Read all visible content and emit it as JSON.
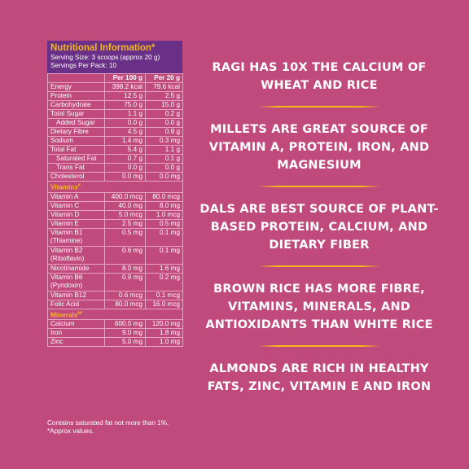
{
  "nutrition": {
    "title": "Nutritional Information*",
    "serving_size": "Serving Size: 3 scoops (approx 20 g)",
    "servings_per_pack": "Servings Per Pack: 10",
    "col1": "Per 100 g",
    "col2": "Per 20 g",
    "rows": [
      [
        "Energy",
        "398.2 kcal",
        "79.6 kcal"
      ],
      [
        "Protein",
        "12.5 g",
        "2.5 g"
      ],
      [
        "Carbohydrate",
        "75.0 g",
        "15.0 g"
      ],
      [
        "Total Sugar",
        "1.1 g",
        "0.2 g"
      ],
      [
        "Added Sugar",
        "0.0 g",
        "0.0 g"
      ],
      [
        "Dietary Fibre",
        "4.5 g",
        "0.9 g"
      ],
      [
        "Sodium",
        "1.4 mg",
        "0.3 mg"
      ],
      [
        "Total Fat",
        "5.4 g",
        "1.1 g"
      ],
      [
        "Saturated Fat",
        "0.7 g",
        "0.1 g"
      ],
      [
        "Trans Fat",
        "0.0 g",
        "0.0 g"
      ],
      [
        "Cholesterol",
        "0.0 mg",
        "0.0 mg"
      ]
    ],
    "vitamins_label": "Vitamins",
    "vitamins_mark": "#",
    "vitamins": [
      [
        "Vitamin A",
        "400.0 mcg",
        "80.0 mcg"
      ],
      [
        "Vitamin C",
        "40.0 mg",
        "8.0 mg"
      ],
      [
        "Vitamin D",
        "5.0 mcg",
        "1.0 mcg"
      ],
      [
        "Vitamin E",
        "2.5 mg",
        "0.5 mg"
      ],
      [
        "Vitamin B1 (Thiamine)",
        "0.5 mg",
        "0.1 mg"
      ],
      [
        "Vitamin B2 (Riboflavin)",
        "0.6 mg",
        "0.1 mg"
      ],
      [
        "Nicotinamide",
        "8.0 mg",
        "1.6 mg"
      ],
      [
        "Vitamin B6 (Pyridoxin)",
        "0.9 mg",
        "0.2 mg"
      ],
      [
        "Vitamin B12",
        "0.6 mcg",
        "0.1 mcg"
      ],
      [
        "Folic Acid",
        "80.0 mcg",
        "16.0 mcg"
      ]
    ],
    "minerals_label": "Minerals",
    "minerals_mark": "##",
    "minerals": [
      [
        "Calcium",
        "600.0 mg",
        "120.0 mg"
      ],
      [
        "Iron",
        "9.0 mg",
        "1.8 mg"
      ],
      [
        "Zinc",
        "5.0 mg",
        "1.0 mg"
      ]
    ],
    "footnote1": "Contains saturated fat not more than 1%.",
    "footnote2": "*Approx values."
  },
  "facts": [
    "Ragi has 10x the calcium of wheat and rice",
    "Millets are great source of Vitamin A, protein, iron, and magnesium",
    "Dals are best source of plant-based protein, calcium, and dietary fiber",
    "Brown rice  has more fibre, vitamins, minerals, and antioxidants than white rice",
    "Almonds are rich in healthy fats, zinc, vitamin E and iron"
  ],
  "colors": {
    "background": "#c04a7b",
    "header": "#6a2f86",
    "accent": "#f6b81c"
  }
}
